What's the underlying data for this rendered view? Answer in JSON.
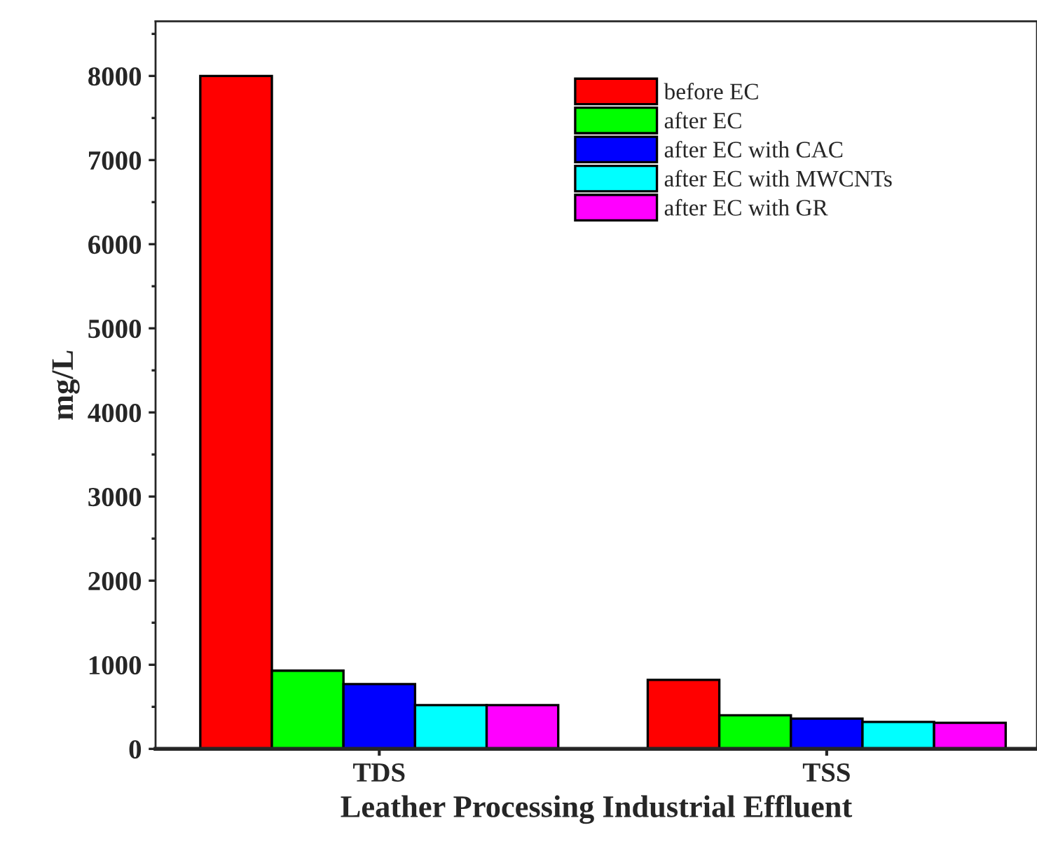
{
  "chart_data": {
    "type": "bar",
    "xlabel": "Leather Processing Industrial Effluent",
    "ylabel": "mg/L",
    "categories": [
      "TDS",
      "TSS"
    ],
    "series": [
      {
        "name": "before EC",
        "color": "#ff0000",
        "values": [
          8000,
          820
        ]
      },
      {
        "name": "after EC",
        "color": "#00ff00",
        "values": [
          930,
          400
        ]
      },
      {
        "name": "after EC with CAC",
        "color": "#0000ff",
        "values": [
          770,
          360
        ]
      },
      {
        "name": "after EC with MWCNTs",
        "color": "#00ffff",
        "values": [
          520,
          320
        ]
      },
      {
        "name": "after EC with GR",
        "color": "#ff00ff",
        "values": [
          520,
          310
        ]
      }
    ],
    "ylim": [
      0,
      8650
    ],
    "yticks": [
      0,
      1000,
      2000,
      3000,
      4000,
      5000,
      6000,
      7000,
      8000
    ],
    "grid": false,
    "legend": "top right"
  }
}
